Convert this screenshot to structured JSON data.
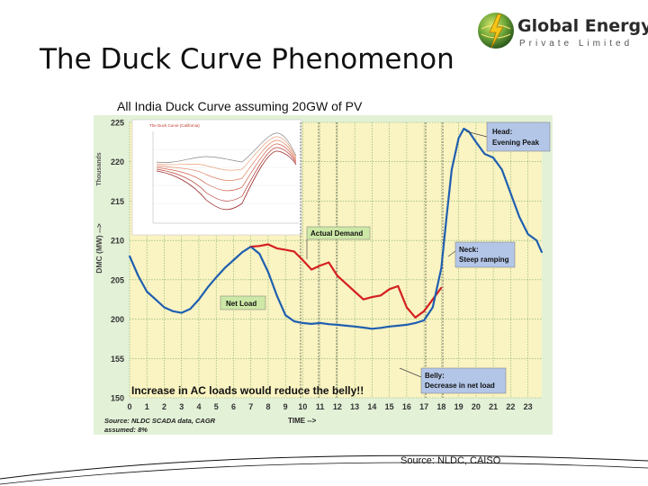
{
  "slide": {
    "title": "The Duck Curve Phenomenon",
    "source": "Source: NLDC, CAISO"
  },
  "logo": {
    "name": "Global Energy",
    "subtitle": "Private Limited"
  },
  "colors": {
    "plot_background": "#faf3c2",
    "frame_background": "#e3f1d7",
    "net_load": "#1f5fb0",
    "actual_demand": "#d42020",
    "callout_fill": "#b3c6e8",
    "callout_green": "#cde8a6"
  },
  "chart_data": {
    "type": "line",
    "title": "All India Duck Curve assuming 20GW of PV",
    "xlabel": "TIME -->",
    "ylabel": "DMC (MW) -->",
    "y_unit": "Thousands",
    "xlim": [
      0,
      23.8
    ],
    "ylim": [
      150,
      225
    ],
    "x_ticks": [
      0,
      1,
      2,
      3,
      4,
      5,
      6,
      7,
      8,
      9,
      10,
      11,
      12,
      13,
      14,
      15,
      16,
      17,
      18,
      19,
      20,
      21,
      22,
      23
    ],
    "y_ticks": [
      150,
      155,
      200,
      205,
      210,
      215,
      220,
      225
    ],
    "grid": true,
    "series": [
      {
        "name": "Net Load",
        "x": [
          0,
          0.5,
          1,
          1.5,
          2,
          2.5,
          3,
          3.5,
          4,
          4.5,
          5,
          5.5,
          6,
          6.5,
          7,
          7.5,
          8,
          8.5,
          9,
          9.5,
          10,
          10.5,
          11,
          11.5,
          12,
          12.5,
          13,
          13.5,
          14,
          14.5,
          15,
          15.5,
          16,
          16.5,
          17,
          17.5,
          18,
          18.3,
          18.6,
          19,
          19.3,
          19.6,
          20,
          20.5,
          21,
          21.5,
          22,
          22.5,
          23,
          23.5,
          23.8
        ],
        "values": [
          208,
          205.5,
          203.5,
          202.5,
          201.5,
          201,
          200.8,
          201.3,
          202.5,
          204,
          205.3,
          206.5,
          207.5,
          208.5,
          209.2,
          208.3,
          206,
          203,
          200.5,
          197.5,
          195.5,
          194.5,
          195.5,
          194.2,
          193.5,
          192.5,
          191.5,
          190.3,
          189,
          190,
          191.5,
          192.5,
          193.5,
          195.5,
          198.5,
          201.5,
          206.5,
          213,
          219,
          223,
          224.2,
          223.8,
          222.5,
          221,
          220.5,
          219,
          216,
          213,
          210.8,
          210,
          208.5
        ]
      },
      {
        "name": "Actual Demand",
        "x": [
          7,
          7.5,
          8,
          8.5,
          9,
          9.5,
          10,
          10.5,
          11,
          11.5,
          12,
          12.5,
          13,
          13.5,
          14,
          14.5,
          15,
          15.5,
          16,
          16.5,
          17,
          17.5,
          18
        ],
        "values": [
          209.2,
          209.3,
          209.5,
          209,
          208.8,
          208.6,
          207.5,
          206.3,
          206.8,
          207.2,
          205.5,
          204.5,
          203.5,
          202.5,
          202.8,
          203,
          203.8,
          204.2,
          201.5,
          200.2,
          201,
          202.5,
          204
        ]
      }
    ],
    "annotations": {
      "head": [
        "Head:",
        "Evening Peak"
      ],
      "neck": [
        "Neck:",
        "Steep ramping"
      ],
      "belly": [
        "Belly:",
        "Decrease in net load"
      ],
      "actual_demand": "Actual Demand",
      "net_load": "Net Load",
      "headline": "Increase in AC loads would reduce the belly!!",
      "source": "Source: NLDC SCADA data, CAGR",
      "assumed": "assumed: 8%"
    },
    "inset": {
      "title": "The Duck Curve (California)"
    }
  }
}
